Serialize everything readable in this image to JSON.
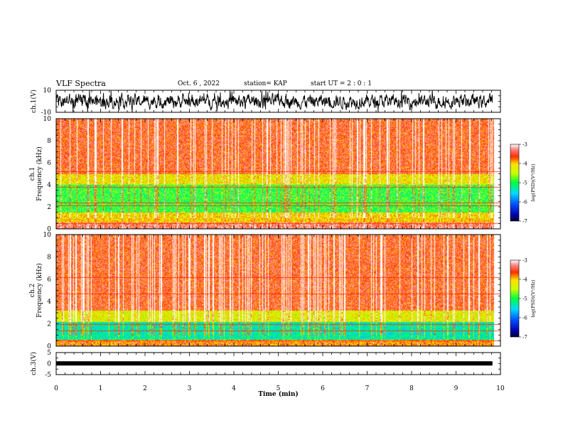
{
  "header": {
    "title": "VLF Spectra",
    "date": "Oct. 6 , 2022",
    "station": "station= KAP",
    "start": "start UT = 2 : 0 : 1"
  },
  "chart_data": [
    {
      "type": "line",
      "name_label": "ch.1(V)",
      "ylim": [
        -10,
        10
      ],
      "yticks": [
        "10",
        "-10"
      ],
      "xlim": [
        0,
        10
      ]
    },
    {
      "type": "heatmap",
      "ylabel_line1": "ch.1",
      "ylabel_line2": "Frequency (kHz)",
      "ylim": [
        0,
        10
      ],
      "yticks": [
        "0",
        "2",
        "4",
        "6",
        "8",
        "10"
      ],
      "xlim": [
        0,
        10
      ],
      "colorbar": {
        "label": "log(PSD)(V²/Hz)",
        "range": [
          -7,
          -3
        ],
        "ticks": [
          "-3",
          "-4",
          "-5",
          "-6",
          "-7"
        ]
      }
    },
    {
      "type": "heatmap",
      "ylabel_line1": "ch.2",
      "ylabel_line2": "Frequency (kHz)",
      "ylim": [
        0,
        10
      ],
      "yticks": [
        "0",
        "2",
        "4",
        "6",
        "8",
        "10"
      ],
      "xlim": [
        0,
        10
      ],
      "colorbar": {
        "label": "log(PSD)(V²/Hz)",
        "range": [
          -7,
          -3
        ],
        "ticks": [
          "-3",
          "-4",
          "-5",
          "-6",
          "-7"
        ]
      }
    },
    {
      "type": "line",
      "name_label": "ch.3(V)",
      "ylim": [
        -5,
        5
      ],
      "yticks": [
        "5",
        "0",
        "-5"
      ],
      "xlim": [
        0,
        10
      ]
    }
  ],
  "xaxis": {
    "label": "Time (min)",
    "ticks": [
      "0",
      "1",
      "2",
      "3",
      "4",
      "5",
      "6",
      "7",
      "8",
      "9",
      "10"
    ]
  }
}
